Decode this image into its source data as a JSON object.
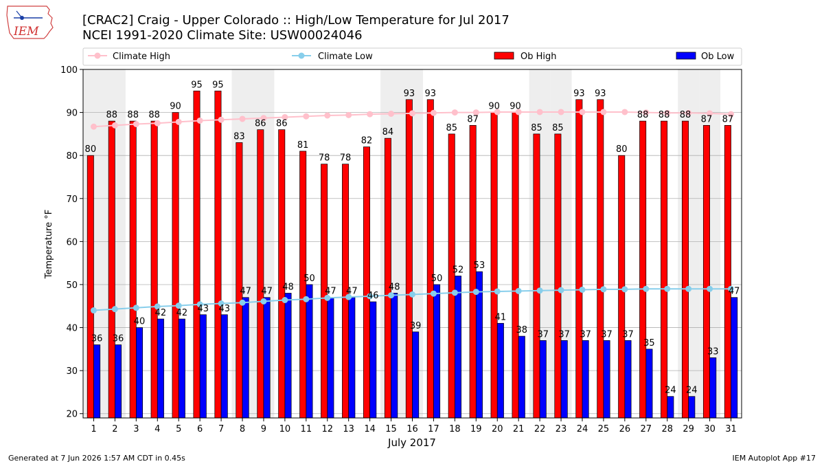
{
  "title_line1": "[CRAC2] Craig - Upper Colorado :: High/Low Temperature for Jul 2017",
  "title_line2": "NCEI 1991-2020 Climate Site: USW00024046",
  "logo_text": "IEM",
  "footer_left": "Generated at 7 Jun 2026 1:57 AM CDT in 0.45s",
  "footer_right": "IEM Autoplot App #17",
  "colors": {
    "ob_high": "#ff0000",
    "ob_low": "#0000ff",
    "climate_high": "#ffc0cb",
    "climate_low": "#87ceeb",
    "weekend_shade": "#eeeeee",
    "grid": "#b0b0b0"
  },
  "chart_data": {
    "type": "bar",
    "xlabel": "July 2017",
    "ylabel": "Temperature °F",
    "ylim": [
      19,
      100
    ],
    "yticks": [
      20,
      30,
      40,
      50,
      60,
      70,
      80,
      90,
      100
    ],
    "grid": "horizontal",
    "legend": "top",
    "categories": [
      "1",
      "2",
      "3",
      "4",
      "5",
      "6",
      "7",
      "8",
      "9",
      "10",
      "11",
      "12",
      "13",
      "14",
      "15",
      "16",
      "17",
      "18",
      "19",
      "20",
      "21",
      "22",
      "23",
      "24",
      "25",
      "26",
      "27",
      "28",
      "29",
      "30",
      "31"
    ],
    "shaded_days": [
      1,
      2,
      8,
      9,
      15,
      16,
      22,
      23,
      29,
      30
    ],
    "series": [
      {
        "name": "Ob High",
        "kind": "bar",
        "values": [
          80,
          88,
          88,
          88,
          90,
          95,
          95,
          83,
          86,
          86,
          81,
          78,
          78,
          82,
          84,
          93,
          93,
          85,
          87,
          90,
          90,
          85,
          85,
          93,
          93,
          80,
          88,
          88,
          88,
          87,
          87
        ]
      },
      {
        "name": "Ob Low",
        "kind": "bar",
        "values": [
          36,
          36,
          40,
          42,
          42,
          43,
          43,
          47,
          47,
          48,
          50,
          47,
          47,
          46,
          48,
          39,
          50,
          52,
          53,
          41,
          38,
          37,
          37,
          37,
          37,
          37,
          35,
          24,
          24,
          33,
          47
        ]
      },
      {
        "name": "Climate High",
        "kind": "line",
        "values": [
          86.7,
          87.0,
          87.3,
          87.5,
          87.8,
          88.1,
          88.3,
          88.5,
          88.7,
          88.9,
          89.1,
          89.3,
          89.4,
          89.6,
          89.7,
          89.8,
          89.9,
          90.0,
          90.0,
          90.1,
          90.1,
          90.1,
          90.1,
          90.1,
          90.1,
          90.1,
          90.0,
          89.9,
          89.9,
          89.8,
          89.6
        ]
      },
      {
        "name": "Climate Low",
        "kind": "line",
        "values": [
          44.0,
          44.3,
          44.6,
          44.9,
          45.1,
          45.4,
          45.6,
          45.8,
          46.1,
          46.4,
          46.6,
          46.9,
          47.1,
          47.3,
          47.5,
          47.7,
          47.9,
          48.1,
          48.3,
          48.4,
          48.5,
          48.6,
          48.7,
          48.8,
          48.9,
          48.9,
          49.0,
          49.0,
          49.0,
          49.0,
          49.0
        ]
      }
    ]
  }
}
